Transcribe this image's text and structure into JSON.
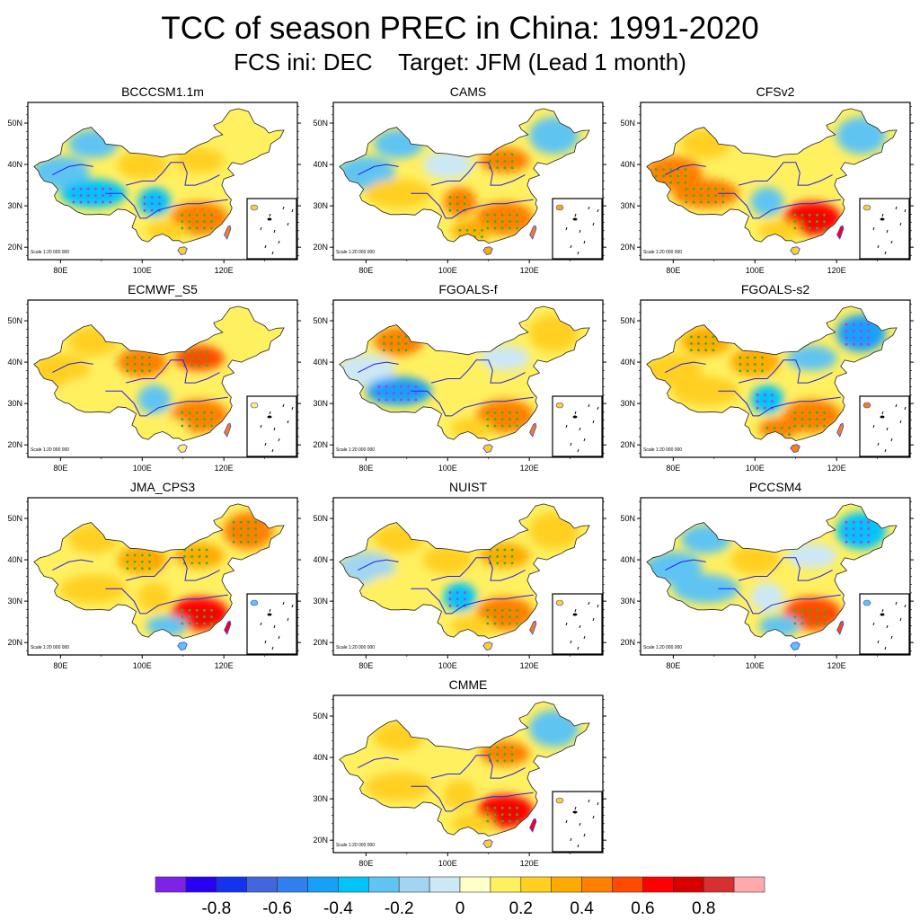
{
  "header": {
    "title": "TCC of season PREC in China: 1991-2020",
    "subtitle": "FCS ini: DEC    Target: JFM (Lead 1 month)"
  },
  "chart_data": {
    "type": "heatmap",
    "title": "TCC of season PREC in China: 1991-2020",
    "subtitle": "FCS ini: DEC    Target: JFM (Lead 1 month)",
    "xlabel": "",
    "ylabel": "",
    "x_ticks": [
      "80E",
      "100E",
      "120E"
    ],
    "y_ticks": [
      "50N",
      "40N",
      "30N",
      "20N"
    ],
    "xlim": [
      72,
      138
    ],
    "ylim": [
      17,
      55
    ],
    "scale_text": "Scale 1:20 000 000",
    "panels": [
      {
        "name": "BCCCSM1.1m",
        "pattern": {
          "west": -0.3,
          "northwest": -0.2,
          "tibet": -0.4,
          "central_north": 0.3,
          "north": 0.2,
          "northeast": 0.1,
          "sichuan": -0.4,
          "southeast": 0.45,
          "south": 0.3
        }
      },
      {
        "name": "CAMS",
        "pattern": {
          "west": -0.3,
          "northwest": -0.2,
          "tibet": 0.2,
          "central_north": -0.1,
          "north": 0.4,
          "northeast": -0.2,
          "sichuan": 0.4,
          "southeast": 0.45,
          "south": 0.35
        }
      },
      {
        "name": "CFSv2",
        "pattern": {
          "west": 0.5,
          "northwest": 0.3,
          "tibet": 0.4,
          "central_north": 0.1,
          "north": 0.1,
          "northeast": -0.3,
          "sichuan": -0.2,
          "southeast": 0.6,
          "south": 0.3
        }
      },
      {
        "name": "ECMWF_S5",
        "pattern": {
          "west": 0.2,
          "northwest": 0.3,
          "tibet": 0.1,
          "central_north": 0.5,
          "north": 0.55,
          "northeast": 0.15,
          "sichuan": -0.2,
          "southeast": 0.45,
          "south": 0.1
        }
      },
      {
        "name": "FGOALS-f",
        "pattern": {
          "west": -0.1,
          "northwest": 0.4,
          "tibet": -0.45,
          "central_north": 0.1,
          "north": -0.1,
          "northeast": 0.2,
          "sichuan": 0.1,
          "southeast": 0.5,
          "south": 0.3
        }
      },
      {
        "name": "FGOALS-s2",
        "pattern": {
          "west": 0.3,
          "northwest": 0.35,
          "tibet": 0.3,
          "central_north": 0.35,
          "north": -0.2,
          "northeast": -0.45,
          "sichuan": -0.35,
          "southeast": 0.45,
          "south": 0.4
        }
      },
      {
        "name": "JMA_CPS3",
        "pattern": {
          "west": 0.1,
          "northwest": 0.2,
          "tibet": 0.3,
          "central_north": 0.35,
          "north": 0.35,
          "northeast": 0.4,
          "sichuan": 0.3,
          "southeast": 0.6,
          "south": -0.2
        }
      },
      {
        "name": "NUIST",
        "pattern": {
          "west": -0.15,
          "northwest": 0.3,
          "tibet": 0.1,
          "central_north": 0.3,
          "north": 0.35,
          "northeast": 0.2,
          "sichuan": -0.35,
          "southeast": 0.45,
          "south": 0.3
        }
      },
      {
        "name": "PCCSM4",
        "pattern": {
          "west": -0.3,
          "northwest": -0.25,
          "tibet": -0.2,
          "central_north": 0.2,
          "north": -0.1,
          "northeast": -0.4,
          "sichuan": -0.1,
          "southeast": 0.55,
          "south": -0.2
        }
      },
      {
        "name": "CMME",
        "pattern": {
          "west": 0.1,
          "northwest": 0.3,
          "tibet": 0.3,
          "central_north": 0.1,
          "north": 0.5,
          "northeast": -0.2,
          "sichuan": 0.2,
          "southeast": 0.6,
          "south": 0.3
        }
      }
    ],
    "colorbar": {
      "levels": [
        -0.9,
        -0.8,
        -0.7,
        -0.6,
        -0.5,
        -0.4,
        -0.3,
        -0.2,
        -0.1,
        0,
        0.1,
        0.2,
        0.3,
        0.4,
        0.5,
        0.6,
        0.7,
        0.8,
        0.9
      ],
      "tick_labels": [
        "-0.8",
        "-0.6",
        "-0.4",
        "-0.2",
        "0",
        "0.2",
        "0.4",
        "0.6",
        "0.8"
      ],
      "tick_values": [
        -0.8,
        -0.6,
        -0.4,
        -0.2,
        0,
        0.2,
        0.4,
        0.6,
        0.8
      ],
      "colors": [
        "#8021e8",
        "#2a00f5",
        "#1433ee",
        "#4466dd",
        "#2f7ff0",
        "#16a0f8",
        "#00c3f8",
        "#5fc4f2",
        "#a2d5f0",
        "#cce8f5",
        "#ffffc8",
        "#fff060",
        "#ffd020",
        "#ffaa00",
        "#ff8000",
        "#ff4a00",
        "#ff0000",
        "#d90000",
        "#d83030",
        "#ffaaaa"
      ]
    },
    "significance_markers": {
      "positive": "green dots",
      "negative": "purple dots"
    }
  }
}
